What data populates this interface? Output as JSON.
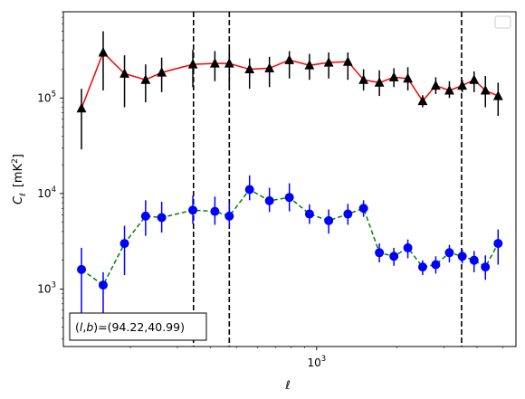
{
  "chart_data": {
    "type": "scatter",
    "xscale": "log",
    "yscale": "log",
    "xlim": [
      112,
      5600
    ],
    "ylim": [
      250,
      800000
    ],
    "xlabel_main": "ℓ",
    "ylabel_main": "C",
    "ylabel_sub": "ℓ",
    "ylabel_unit_pre": "[mK",
    "ylabel_unit_sup": "2",
    "ylabel_unit_post": "]",
    "x_ticks": [
      {
        "value": 1000,
        "base": "10",
        "exp": "3"
      }
    ],
    "y_ticks": [
      {
        "value": 1000,
        "base": "10",
        "exp": "3"
      },
      {
        "value": 10000,
        "base": "10",
        "exp": "4"
      },
      {
        "value": 100000,
        "base": "10",
        "exp": "5"
      }
    ],
    "annotation": {
      "prefix": "(",
      "l": "l",
      "comma": ",",
      "b": "b",
      "suffix": ")=(94.22,40.99)"
    },
    "legend": "upper right, empty",
    "vlines": [
      345,
      470,
      3500
    ],
    "series": [
      {
        "marker": "triangle",
        "line_style": "solid",
        "line_color": "#ff0000",
        "marker_color": "#000000",
        "x": [
          131,
          158,
          190,
          228,
          262,
          343,
          415,
          470,
          560,
          665,
          790,
          940,
          1110,
          1310,
          1500,
          1720,
          1950,
          2200,
          2500,
          2800,
          3150,
          3520,
          3900,
          4300,
          4800
        ],
        "y": [
          78000,
          300000,
          180000,
          155000,
          185000,
          225000,
          230000,
          230000,
          200000,
          205000,
          250000,
          220000,
          235000,
          240000,
          155000,
          145000,
          165000,
          160000,
          93000,
          135000,
          120000,
          135000,
          155000,
          120000,
          105000
        ],
        "yerr_lo": [
          29000,
          120000,
          80000,
          90000,
          115000,
          130000,
          150000,
          135000,
          125000,
          130000,
          160000,
          155000,
          160000,
          155000,
          120000,
          105000,
          130000,
          120000,
          80000,
          110000,
          100000,
          115000,
          115000,
          80000,
          65000
        ],
        "yerr_hi": [
          125000,
          500000,
          280000,
          225000,
          265000,
          320000,
          310000,
          330000,
          260000,
          270000,
          310000,
          290000,
          300000,
          300000,
          200000,
          195000,
          205000,
          210000,
          107000,
          165000,
          150000,
          155000,
          190000,
          170000,
          145000
        ]
      },
      {
        "marker": "circle",
        "line_style": "dashed",
        "line_color": "#008000",
        "marker_color": "#0000ff",
        "x": [
          131,
          158,
          190,
          228,
          262,
          343,
          415,
          470,
          560,
          665,
          790,
          940,
          1110,
          1310,
          1500,
          1720,
          1950,
          2200,
          2500,
          2800,
          3150,
          3520,
          3900,
          4300,
          4800
        ],
        "y": [
          1600,
          1100,
          3000,
          5800,
          5600,
          6700,
          6500,
          5800,
          11000,
          8400,
          9100,
          6100,
          5200,
          6100,
          7000,
          2400,
          2200,
          2700,
          1700,
          1800,
          2400,
          2200,
          2000,
          1700,
          3000
        ],
        "yerr_lo": [
          560,
          560,
          1400,
          3600,
          3900,
          4800,
          4700,
          4500,
          8500,
          6400,
          6500,
          4800,
          3800,
          4700,
          5700,
          1900,
          1750,
          2100,
          1400,
          1450,
          1900,
          1850,
          1500,
          1250,
          1800
        ],
        "yerr_hi": [
          2700,
          1500,
          4600,
          8500,
          8200,
          9500,
          9300,
          8100,
          15500,
          11500,
          12800,
          7700,
          6800,
          7800,
          8500,
          3000,
          2700,
          3300,
          2000,
          2200,
          2900,
          2600,
          2500,
          2250,
          4200
        ]
      }
    ]
  }
}
